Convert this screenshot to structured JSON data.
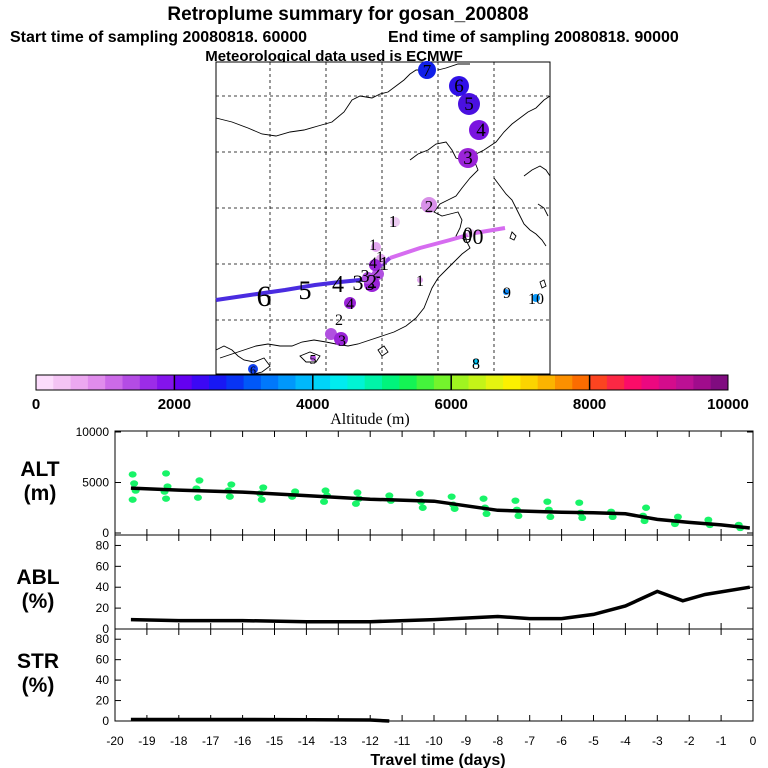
{
  "header": {
    "title": "Retroplume summary for gosan_200808",
    "start_label": "Start time of sampling 20080818. 60000",
    "end_label": "End time of sampling 20080818. 90000",
    "met_label": "Meteorological data used is ECMWF"
  },
  "colorbar": {
    "label": "Altitude (m)",
    "ticks": [
      "0",
      "2000",
      "4000",
      "6000",
      "8000",
      "10000"
    ],
    "colors": [
      "#fcdcfc",
      "#f4c4f4",
      "#eca8f0",
      "#e08cec",
      "#cc6ae8",
      "#b44ce4",
      "#9c2ce8",
      "#8414ec",
      "#6400f0",
      "#3c08f4",
      "#1818f4",
      "#0834f4",
      "#0058f8",
      "#0078fc",
      "#0098fc",
      "#00b8fc",
      "#00d4f8",
      "#00ecf0",
      "#00f4d4",
      "#00f4a8",
      "#00f47c",
      "#14f454",
      "#44f43c",
      "#74f42c",
      "#a0f420",
      "#c4f418",
      "#e4f410",
      "#fcf000",
      "#fcd400",
      "#fcb400",
      "#fc9000",
      "#fc6c00",
      "#fc4420",
      "#fc2844",
      "#fc0c68",
      "#ec0880",
      "#d40c8c",
      "#bc1094",
      "#a00c8c",
      "#800c80"
    ]
  },
  "map": {
    "markers": [
      {
        "label": "7",
        "color": "#1020e8",
        "r": 9
      },
      {
        "label": "6",
        "color": "#3010e8",
        "r": 10
      },
      {
        "label": "5",
        "color": "#4a10e0",
        "r": 11
      },
      {
        "label": "4",
        "color": "#7a14e0",
        "r": 10
      },
      {
        "label": "3",
        "color": "#9a24d8",
        "r": 10
      },
      {
        "label": "2",
        "color": "#d890e8",
        "r": 8
      },
      {
        "label": "1",
        "color": "#eccbf2",
        "r": 5
      },
      {
        "label": "0",
        "color": "#eccbf2",
        "r": 4
      },
      {
        "label": "1",
        "color": "#e2a6ef",
        "r": 5
      },
      {
        "label": "1",
        "color": "#e2a6ef",
        "r": 5
      },
      {
        "label": "2",
        "color": "#b050e0",
        "r": 6
      },
      {
        "label": "3",
        "color": "#9a24d8",
        "r": 8
      },
      {
        "label": "3",
        "color": "#b04ce0",
        "r": 6
      },
      {
        "label": "4",
        "color": "#9a24d8",
        "r": 6
      },
      {
        "label": "4",
        "color": "#9a24d8",
        "r": 6
      },
      {
        "label": "2",
        "color": "#b050e0",
        "r": 6
      },
      {
        "label": "3",
        "color": "#9a24d8",
        "r": 7
      },
      {
        "label": "1",
        "color": "#e2a6ef",
        "r": 3
      },
      {
        "label": "8",
        "color": "#00c8f8",
        "r": 3
      },
      {
        "label": "9",
        "color": "#0a88f8",
        "r": 3
      },
      {
        "label": "10",
        "color": "#0a98f8",
        "r": 4
      },
      {
        "label": "5",
        "color": "#b050e0",
        "r": 3
      },
      {
        "label": "6",
        "color": "#1040f0",
        "r": 5
      }
    ],
    "path_labels": [
      {
        "label": "6",
        "size": 30
      },
      {
        "label": "5",
        "size": 26
      },
      {
        "label": "4",
        "size": 24
      },
      {
        "label": "3",
        "size": 22
      },
      {
        "label": "2",
        "size": 20
      },
      {
        "label": "1",
        "size": 20
      },
      {
        "label": "0",
        "size": 20
      },
      {
        "label": "0",
        "size": 22
      }
    ]
  },
  "chart_data": [
    {
      "type": "scatter+line",
      "panel": "ALT",
      "ylabel_top": "ALT",
      "ylabel_unit": "(m)",
      "xlim": [
        -20,
        0
      ],
      "ylim": [
        0,
        10000
      ],
      "yticks": [
        "0",
        "5000",
        "10000"
      ],
      "point_color": "#18f468",
      "line": {
        "x": [
          -19.5,
          -18,
          -16,
          -14,
          -12,
          -10,
          -8,
          -6,
          -5,
          -4,
          -3,
          -2,
          -1,
          -0.1
        ],
        "y": [
          4450,
          4250,
          4050,
          3700,
          3350,
          3150,
          2250,
          2050,
          2000,
          1900,
          1350,
          1050,
          800,
          500
        ]
      },
      "points": {
        "x": [
          -19.4,
          -19.4,
          -19.4,
          -19.4,
          -18.4,
          -18.4,
          -18.4,
          -18.4,
          -17.4,
          -17.4,
          -17.4,
          -16.4,
          -16.4,
          -16.4,
          -15.4,
          -15.4,
          -15.4,
          -14.4,
          -14.4,
          -13.4,
          -13.4,
          -13.4,
          -12.4,
          -12.4,
          -12.4,
          -11.4,
          -11.4,
          -10.4,
          -10.4,
          -10.4,
          -9.4,
          -9.4,
          -9.4,
          -8.4,
          -8.4,
          -8.4,
          -7.4,
          -7.4,
          -7.4,
          -6.4,
          -6.4,
          -6.4,
          -5.4,
          -5.4,
          -5.4,
          -4.4,
          -4.4,
          -3.4,
          -3.4,
          -3.4,
          -2.4,
          -2.4,
          -1.4,
          -1.4,
          -0.4,
          -0.4
        ],
        "y": [
          5800,
          4900,
          4200,
          3300,
          5900,
          4600,
          4100,
          3400,
          5200,
          4400,
          3500,
          4800,
          4200,
          3600,
          4500,
          3900,
          3300,
          4100,
          3600,
          4200,
          3700,
          3100,
          4000,
          3400,
          2900,
          3700,
          3200,
          3900,
          3100,
          2500,
          3600,
          2800,
          2400,
          3400,
          2500,
          1900,
          3200,
          2300,
          1700,
          3100,
          2300,
          1600,
          3000,
          2000,
          1500,
          2100,
          1600,
          2500,
          1700,
          1200,
          1600,
          900,
          1300,
          800,
          800,
          500
        ]
      }
    },
    {
      "type": "line",
      "panel": "ABL",
      "ylabel_top": "ABL",
      "ylabel_unit": "(%)",
      "xlim": [
        -20,
        0
      ],
      "ylim": [
        0,
        90
      ],
      "yticks": [
        "0",
        "20",
        "40",
        "60",
        "80"
      ],
      "x": [
        -19.5,
        -18,
        -16,
        -14,
        -12,
        -10,
        -8,
        -7,
        -6,
        -5,
        -4,
        -3,
        -2.2,
        -1.5,
        -0.1
      ],
      "y": [
        9,
        8,
        8,
        7,
        7,
        9,
        12,
        10,
        10,
        14,
        22,
        36,
        27,
        33,
        40
      ]
    },
    {
      "type": "line",
      "panel": "STR",
      "ylabel_top": "STR",
      "ylabel_unit": "(%)",
      "xlim": [
        -20,
        0
      ],
      "ylim": [
        0,
        90
      ],
      "yticks": [
        "0",
        "20",
        "40",
        "60",
        "80"
      ],
      "x": [
        -19.5,
        -16,
        -12,
        -11.4
      ],
      "y": [
        1.5,
        1.5,
        1,
        0
      ],
      "xlabel": "Travel time (days)",
      "xticks": [
        "-20",
        "-19",
        "-18",
        "-17",
        "-16",
        "-15",
        "-14",
        "-13",
        "-12",
        "-11",
        "-10",
        "-9",
        "-8",
        "-7",
        "-6",
        "-5",
        "-4",
        "-3",
        "-2",
        "-1",
        "0"
      ]
    }
  ]
}
